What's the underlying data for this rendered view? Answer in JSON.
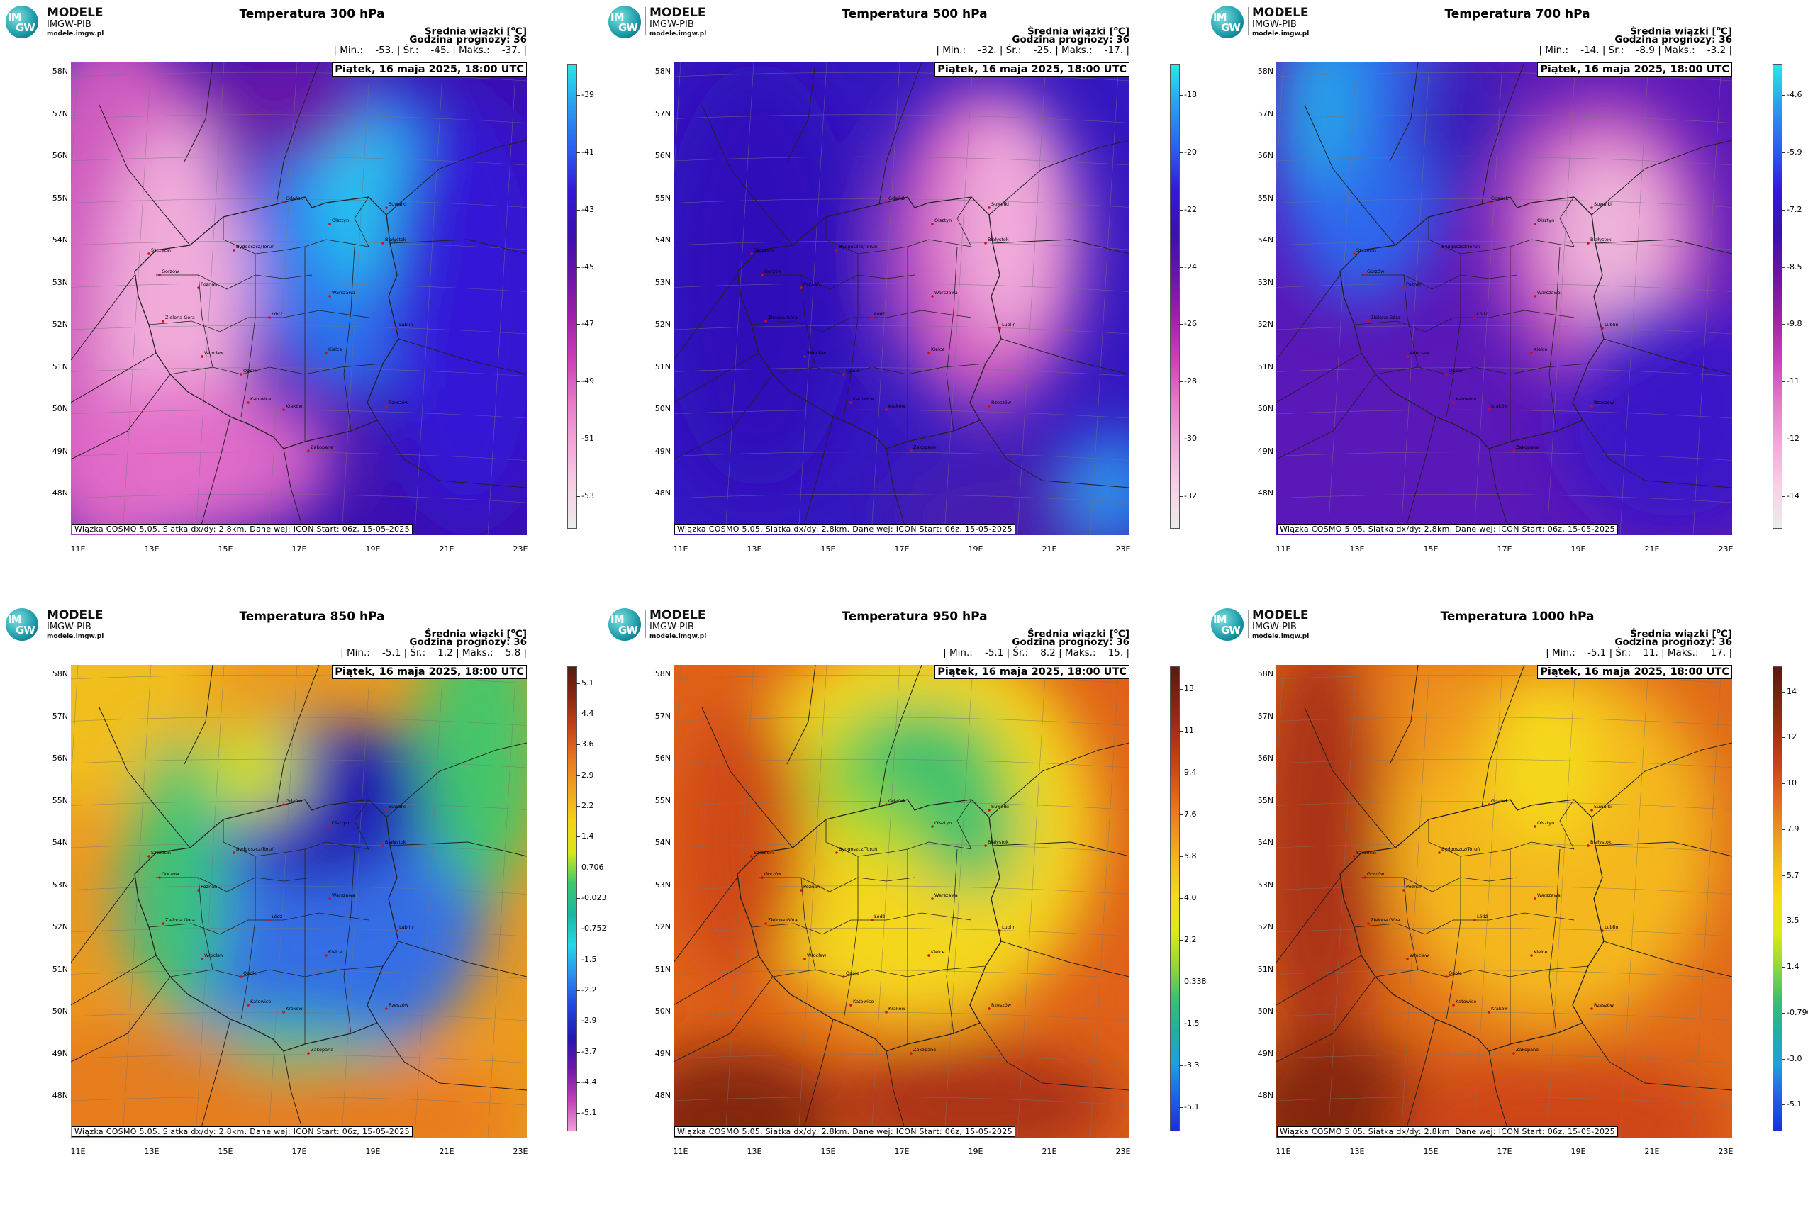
{
  "common": {
    "logo": {
      "line1": "MODELE",
      "line2": "IMGW-PIB",
      "line3": "modele.imgw.pl",
      "im": "IM",
      "gw": "GW"
    },
    "subtitle": "Średnia wiązki [°C]",
    "forecast_hour": "Godzina prognozy: 36",
    "date": "Piątek, 16 maja 2025, 18:00 UTC",
    "footer": "Wiązka COSMO 5.05. Siatka dx/dy: 2.8km. Dane wej: ICON Start: 06z, 15-05-2025",
    "lat_labels": [
      "58N",
      "57N",
      "56N",
      "55N",
      "54N",
      "53N",
      "52N",
      "51N",
      "50N",
      "49N",
      "48N"
    ],
    "lon_labels": [
      "11E",
      "13E",
      "15E",
      "17E",
      "19E",
      "21E",
      "23E"
    ],
    "cities": [
      "Gdańsk",
      "Olsztyn",
      "Suwałki",
      "Białystok",
      "Szczecin",
      "Bydgoszcz/Toruń",
      "Gorzów",
      "Poznań",
      "Warszawa",
      "Zielona Góra",
      "Łódź",
      "Lublin",
      "Wrocław",
      "Opole",
      "Kielce",
      "Katowice",
      "Kraków",
      "Rzeszów",
      "Zakopane"
    ]
  },
  "panels": [
    {
      "title": "Temperatura 300 hPa",
      "stats": "| Min.:    -53. | Śr.:    -45. | Maks.:    -37. |",
      "scheme": "cold",
      "colorbar": [
        "-39",
        "-41",
        "-43",
        "-45",
        "-47",
        "-49",
        "-51",
        "-53"
      ]
    },
    {
      "title": "Temperatura 500 hPa",
      "stats": "| Min.:    -32. | Śr.:    -25. | Maks.:    -17. |",
      "scheme": "cold",
      "colorbar": [
        "-18",
        "-20",
        "-22",
        "-24",
        "-26",
        "-28",
        "-30",
        "-32"
      ]
    },
    {
      "title": "Temperatura 700 hPa",
      "stats": "| Min.:    -14. | Śr.:    -8.9 | Maks.:    -3.2 |",
      "scheme": "cold",
      "colorbar": [
        "-4.6",
        "-5.9",
        "-7.2",
        "-8.5",
        "-9.8",
        "-11",
        "-12",
        "-14"
      ]
    },
    {
      "title": "Temperatura 850 hPa",
      "stats": "| Min.:    -5.1 | Śr.:    1.2 | Maks.:    5.8 |",
      "scheme": "warm",
      "colorbar": [
        "5.1",
        "4.4",
        "3.6",
        "2.9",
        "2.2",
        "1.4",
        "0.706",
        "-0.023",
        "-0.752",
        "-1.5",
        "-2.2",
        "-2.9",
        "-3.7",
        "-4.4",
        "-5.1"
      ]
    },
    {
      "title": "Temperatura 950 hPa",
      "stats": "| Min.:    -5.1 | Śr.:    8.2 | Maks.:    15. |",
      "scheme": "hot",
      "colorbar": [
        "13",
        "11",
        "9.4",
        "7.6",
        "5.8",
        "4.0",
        "2.2",
        "0.338",
        "-1.5",
        "-3.3",
        "-5.1"
      ]
    },
    {
      "title": "Temperatura 1000 hPa",
      "stats": "| Min.:    -5.1 | Śr.:    11. | Maks.:    17. |",
      "scheme": "hot",
      "colorbar": [
        "14",
        "12",
        "10",
        "7.9",
        "5.7",
        "3.5",
        "1.4",
        "-0.790",
        "-3.0",
        "-5.1"
      ]
    }
  ]
}
